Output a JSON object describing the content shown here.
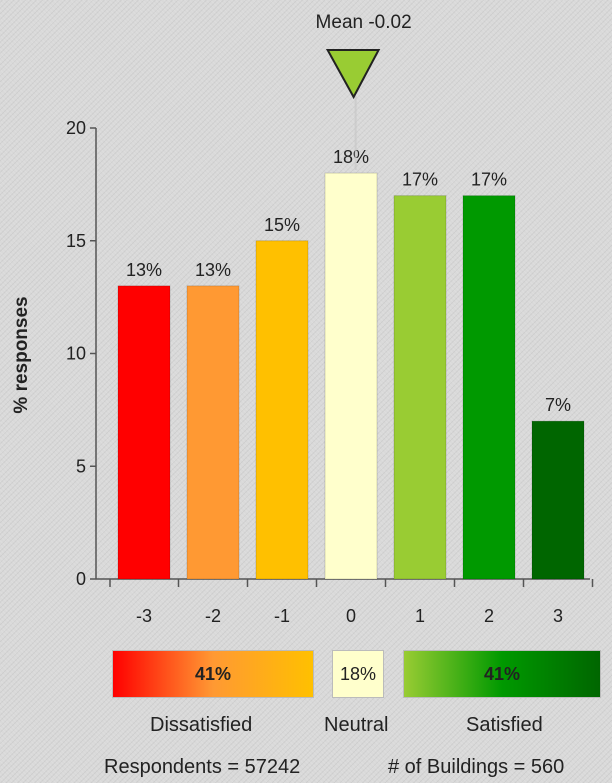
{
  "chart_data": {
    "type": "bar",
    "ylabel": "% responses",
    "ylim": [
      0,
      20
    ],
    "yticks": [
      "0",
      "5",
      "10",
      "15",
      "20"
    ],
    "categories": [
      "-3",
      "-2",
      "-1",
      "0",
      "1",
      "2",
      "3"
    ],
    "values": [
      13,
      13,
      15,
      18,
      17,
      17,
      7
    ],
    "data_labels": [
      "13%",
      "13%",
      "15%",
      "18%",
      "17%",
      "17%",
      "7%"
    ],
    "colors": [
      "#ff0000",
      "#ff9933",
      "#ffc000",
      "#ffffcc",
      "#99cc33",
      "#009900",
      "#006600"
    ],
    "mean_label": "Mean -0.02",
    "mean_value": -0.02,
    "mean_marker_color": "#99cc33"
  },
  "legend": {
    "dissatisfied": {
      "value": "41%",
      "label": "Dissatisfied"
    },
    "neutral": {
      "value": "18%",
      "label": "Neutral"
    },
    "satisfied": {
      "value": "41%",
      "label": "Satisfied"
    }
  },
  "footer": {
    "respondents": "Respondents = 57242",
    "buildings": "# of Buildings = 560"
  }
}
